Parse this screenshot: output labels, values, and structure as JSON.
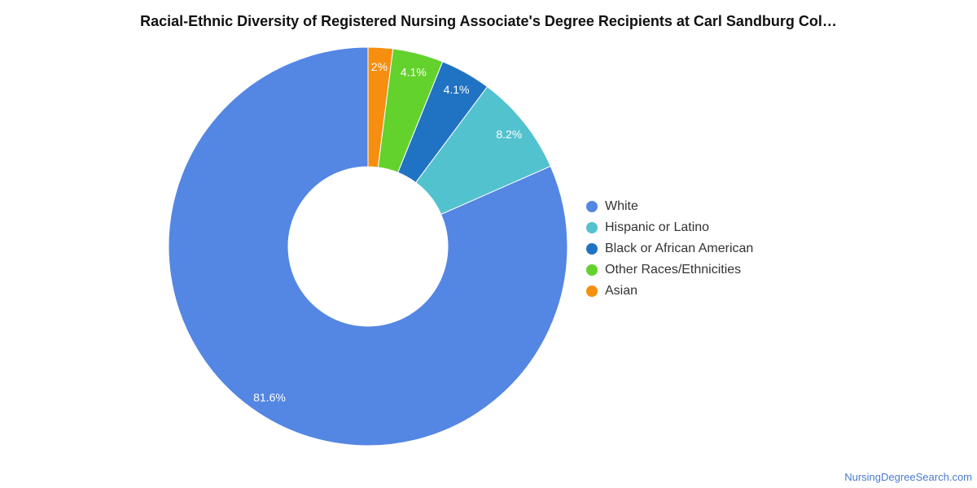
{
  "chart_data": {
    "type": "pie",
    "title": "Racial-Ethnic Diversity of Registered Nursing Associate's Degree Recipients at Carl Sandburg Col…",
    "donut": true,
    "legend_position": "right",
    "slices": [
      {
        "label": "White",
        "value": 81.6,
        "display": "81.6%",
        "color": "#5486e3"
      },
      {
        "label": "Hispanic or Latino",
        "value": 8.2,
        "display": "8.2%",
        "color": "#53c2cf"
      },
      {
        "label": "Black or African American",
        "value": 4.1,
        "display": "4.1%",
        "color": "#2073c3"
      },
      {
        "label": "Other Races/Ethnicities",
        "value": 4.1,
        "display": "4.1%",
        "color": "#63d22d"
      },
      {
        "label": "Asian",
        "value": 2.0,
        "display": "2%",
        "color": "#f68f0f"
      }
    ]
  },
  "footer": {
    "credit": "NursingDegreeSearch.com"
  }
}
